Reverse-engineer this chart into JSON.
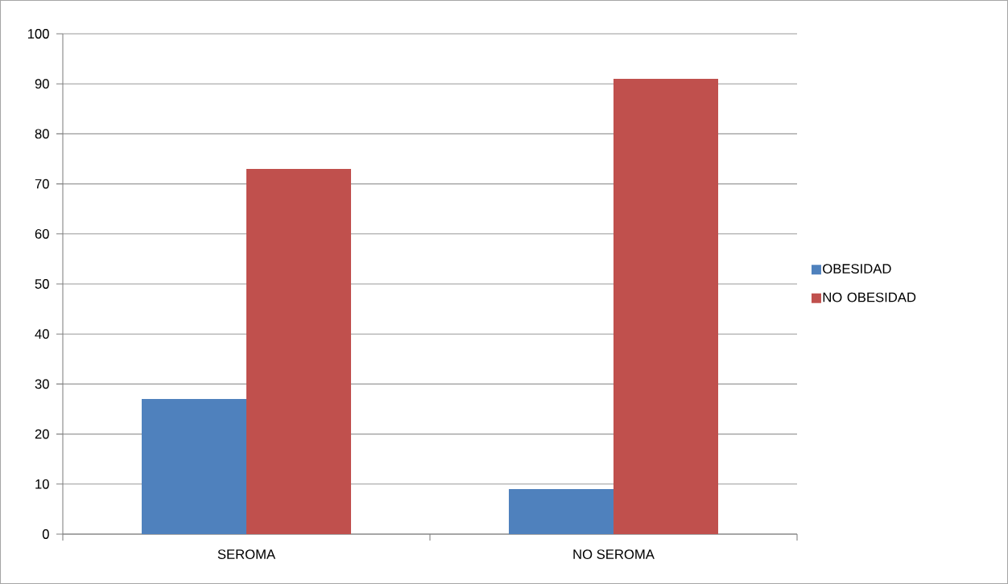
{
  "chart_data": {
    "type": "bar",
    "categories": [
      "SEROMA",
      "NO SEROMA"
    ],
    "series": [
      {
        "name": "OBESIDAD",
        "color": "#4f81bd",
        "values": [
          27,
          9
        ]
      },
      {
        "name": "NO OBESIDAD",
        "color": "#c0504d",
        "values": [
          73,
          91
        ]
      }
    ],
    "ylim": [
      0,
      100
    ],
    "yticks": [
      0,
      10,
      20,
      30,
      40,
      50,
      60,
      70,
      80,
      90,
      100
    ],
    "grid": "y",
    "legend": "right"
  }
}
